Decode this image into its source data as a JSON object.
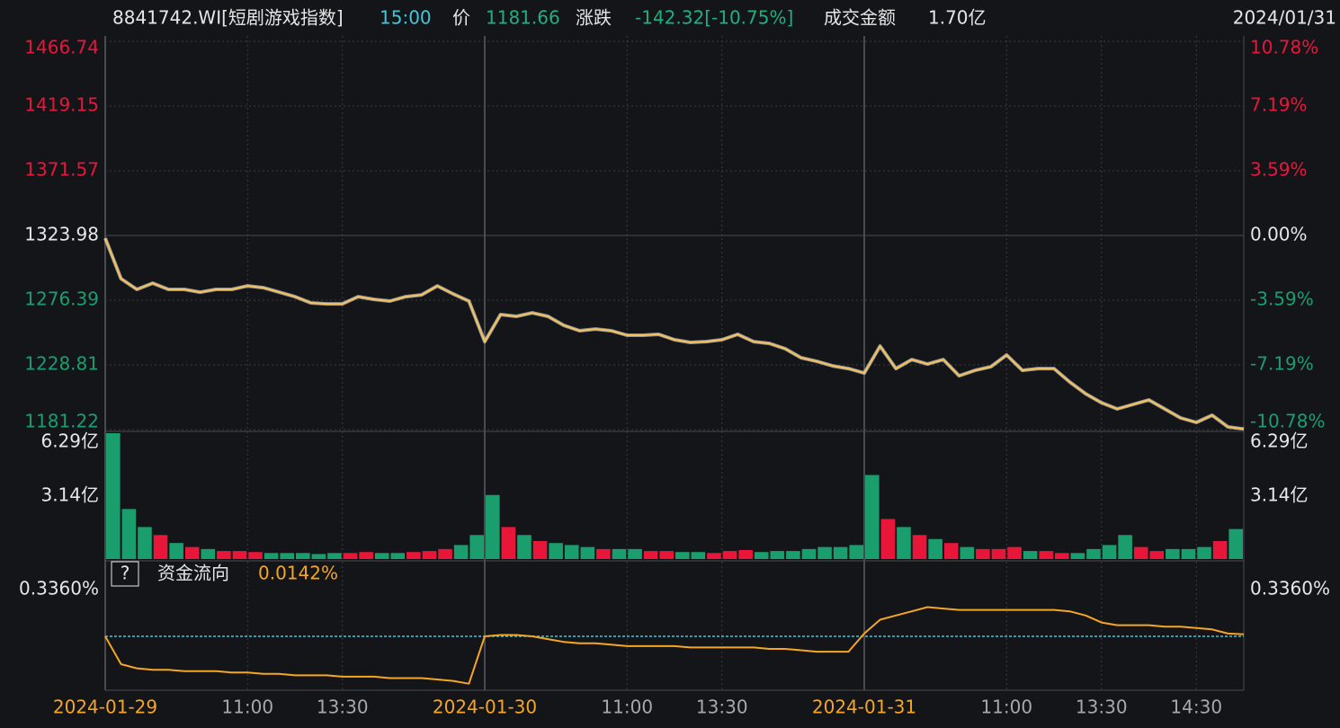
{
  "header": {
    "code": "8841742.WI[短剧游戏指数]",
    "time": "15:00",
    "price_label": "价",
    "price": "1181.66",
    "change_label": "涨跌",
    "change": "-142.32[-10.75%]",
    "amount_label": "成交金额",
    "amount": "1.70亿",
    "date": "2024/01/31"
  },
  "chart_data": [
    {
      "type": "line",
      "color": "#f5c35a",
      "grid": true,
      "values": [
        1322.0,
        1292.2,
        1284.3,
        1288.9,
        1284.3,
        1284.3,
        1282.3,
        1284.3,
        1284.3,
        1286.9,
        1285.6,
        1282.3,
        1279.0,
        1274.4,
        1273.7,
        1273.7,
        1279.0,
        1277.0,
        1275.7,
        1279.0,
        1280.3,
        1286.9,
        1281.0,
        1275.7,
        1245.9,
        1265.8,
        1264.5,
        1267.1,
        1264.5,
        1257.9,
        1253.9,
        1255.2,
        1253.9,
        1250.6,
        1250.6,
        1251.3,
        1247.3,
        1245.3,
        1245.9,
        1247.3,
        1251.3,
        1245.9,
        1244.6,
        1240.7,
        1234.1,
        1231.4,
        1228.1,
        1226.1,
        1222.8,
        1242.6,
        1226.1,
        1232.7,
        1229.4,
        1232.7,
        1220.8,
        1224.8,
        1227.4,
        1236.1,
        1224.8,
        1226.1,
        1226.1,
        1216.2,
        1207.6,
        1201.0,
        1196.4,
        1199.7,
        1203.0,
        1196.4,
        1189.8,
        1186.5,
        1191.8,
        1183.2,
        1181.66
      ],
      "xlim": [
        0,
        72
      ],
      "xticks": [
        {
          "value": 0,
          "label": "2024-01-29"
        },
        {
          "value": 9,
          "label": "11:00"
        },
        {
          "value": 15,
          "label": "13:30"
        },
        {
          "value": 24,
          "label": "2024-01-30"
        },
        {
          "value": 33,
          "label": "11:00"
        },
        {
          "value": 39,
          "label": "13:30"
        },
        {
          "value": 48,
          "label": "2024-01-31"
        },
        {
          "value": 57,
          "label": "11:00"
        },
        {
          "value": 63,
          "label": "13:30"
        },
        {
          "value": 69,
          "label": "14:30"
        }
      ],
      "ylim": [
        1181.22,
        1466.74
      ],
      "yticks": [
        1466.74,
        1419.15,
        1371.57,
        1323.98,
        1276.39,
        1228.81,
        1181.22
      ],
      "y2lim": [
        -10.78,
        10.78
      ],
      "y2ticks": [
        {
          "value": 10.78,
          "label": "10.78%"
        },
        {
          "value": 7.19,
          "label": "7.19%"
        },
        {
          "value": 3.59,
          "label": "3.59%"
        },
        {
          "value": 0,
          "label": "0.00%"
        },
        {
          "value": -3.59,
          "label": "-3.59%"
        },
        {
          "value": -7.19,
          "label": "-7.19%"
        },
        {
          "value": -10.78,
          "label": "-10.78%"
        }
      ],
      "up_color": "#e8173a",
      "down_color": "#1a9e6e",
      "flat_color": "#e6e6e6"
    },
    {
      "type": "bar",
      "up_color": "#e8173a",
      "down_color": "#1a9e6e",
      "values": [
        6.29,
        2.5,
        1.6,
        1.2,
        0.8,
        0.6,
        0.5,
        0.4,
        0.4,
        0.35,
        0.3,
        0.3,
        0.3,
        0.25,
        0.3,
        0.3,
        0.35,
        0.3,
        0.3,
        0.35,
        0.4,
        0.5,
        0.7,
        1.2,
        3.2,
        1.6,
        1.2,
        0.9,
        0.8,
        0.7,
        0.6,
        0.5,
        0.5,
        0.5,
        0.4,
        0.4,
        0.35,
        0.35,
        0.3,
        0.4,
        0.45,
        0.35,
        0.4,
        0.4,
        0.5,
        0.6,
        0.6,
        0.7,
        4.2,
        2.0,
        1.6,
        1.2,
        1.0,
        0.8,
        0.6,
        0.5,
        0.5,
        0.6,
        0.4,
        0.4,
        0.3,
        0.3,
        0.5,
        0.7,
        1.2,
        0.6,
        0.4,
        0.5,
        0.5,
        0.6,
        0.9,
        1.5
      ],
      "xlim": [
        0,
        72
      ],
      "ylim": [
        0,
        6.29
      ],
      "yticks": [
        {
          "value": 6.29,
          "label": "6.29亿"
        },
        {
          "value": 3.14,
          "label": "3.14亿"
        }
      ]
    },
    {
      "type": "line",
      "color": "#f5a623",
      "help": "?",
      "title": "资金流向",
      "current": "0.0142%",
      "values": [
        0,
        -0.2,
        -0.23,
        -0.24,
        -0.24,
        -0.25,
        -0.25,
        -0.25,
        -0.26,
        -0.26,
        -0.27,
        -0.27,
        -0.28,
        -0.28,
        -0.28,
        -0.29,
        -0.29,
        -0.29,
        -0.3,
        -0.3,
        -0.3,
        -0.31,
        -0.32,
        -0.34,
        0,
        0.01,
        0.01,
        0.0,
        -0.02,
        -0.04,
        -0.05,
        -0.05,
        -0.06,
        -0.07,
        -0.07,
        -0.07,
        -0.07,
        -0.08,
        -0.08,
        -0.08,
        -0.08,
        -0.08,
        -0.09,
        -0.09,
        -0.1,
        -0.11,
        -0.11,
        -0.11,
        0.02,
        0.12,
        0.15,
        0.18,
        0.21,
        0.2,
        0.19,
        0.19,
        0.19,
        0.19,
        0.19,
        0.19,
        0.19,
        0.18,
        0.15,
        0.1,
        0.08,
        0.08,
        0.08,
        0.07,
        0.07,
        0.06,
        0.05,
        0.02,
        0.0142
      ],
      "xlim": [
        0,
        72
      ],
      "ylim": [
        -0.368,
        0.517
      ],
      "yticks": [
        {
          "value": 0.336,
          "label": "0.3360%"
        }
      ]
    }
  ]
}
